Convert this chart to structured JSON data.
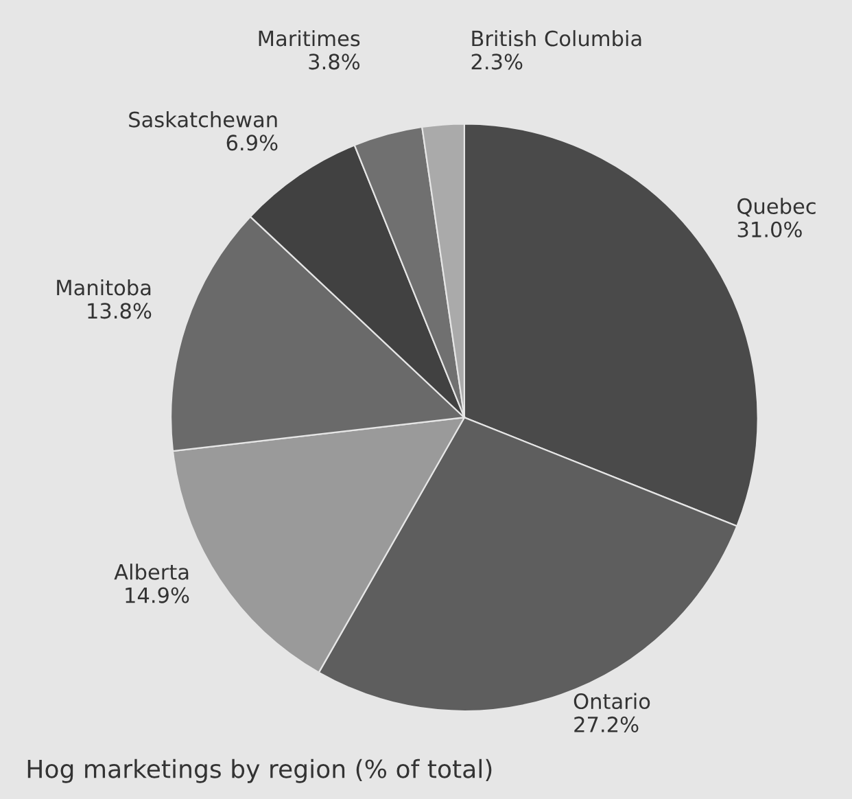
{
  "chart_data": {
    "type": "pie",
    "title": "Hog marketings by region (% of total)",
    "categories": [
      "Quebec",
      "Ontario",
      "Alberta",
      "Manitoba",
      "Saskatchewan",
      "Maritimes",
      "British Columbia"
    ],
    "values": [
      31.0,
      27.2,
      14.9,
      13.8,
      6.9,
      3.8,
      2.3
    ],
    "value_labels": [
      "31.0%",
      "27.2%",
      "14.9%",
      "13.8%",
      "6.9%",
      "3.8%",
      "2.3%"
    ],
    "colors": [
      "#4a4a4a",
      "#5e5e5e",
      "#9a9a9a",
      "#6a6a6a",
      "#414141",
      "#707070",
      "#aaaaaa"
    ]
  }
}
